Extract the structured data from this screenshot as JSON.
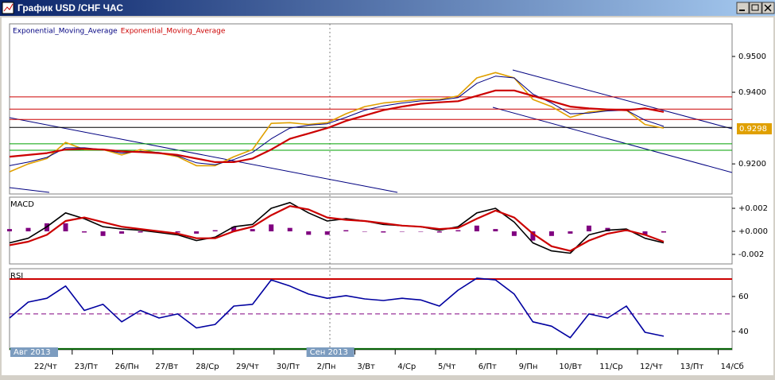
{
  "window": {
    "title": "График USD /CHF ЧАС"
  },
  "price_panel": {
    "type": "line",
    "legend": [
      {
        "name": "Exponential_Moving_Average",
        "color": "#000080"
      },
      {
        "name": "Exponential_Moving_Average",
        "color": "#cc0000"
      }
    ],
    "ylim": [
      0.9116,
      0.9591
    ],
    "yticks": [
      {
        "value": 0.95,
        "label": "0.9500"
      },
      {
        "value": 0.94,
        "label": "0.9400"
      },
      {
        "value": 0.92,
        "label": "0.9200"
      }
    ],
    "last_price": {
      "value": 0.9298,
      "label": "0.9298"
    },
    "levels": [
      {
        "value": 0.9387,
        "color": "#cc0000"
      },
      {
        "value": 0.9353,
        "color": "#cc0000"
      },
      {
        "value": 0.9324,
        "color": "#cc0000"
      },
      {
        "value": 0.9302,
        "color": "#000000"
      },
      {
        "value": 0.9256,
        "color": "#00a000"
      },
      {
        "value": 0.9238,
        "color": "#00a000"
      }
    ],
    "series": [
      {
        "color": "#e0a000",
        "values": [
          0.9178,
          0.92,
          0.9215,
          0.926,
          0.924,
          0.924,
          0.9225,
          0.924,
          0.923,
          0.922,
          0.9195,
          0.9195,
          0.922,
          0.924,
          0.9313,
          0.9315,
          0.931,
          0.9315,
          0.934,
          0.936,
          0.937,
          0.9375,
          0.938,
          0.938,
          0.939,
          0.944,
          0.9455,
          0.944,
          0.938,
          0.936,
          0.933,
          0.9345,
          0.935,
          0.935,
          0.931,
          0.93
        ]
      },
      {
        "color": "#000080",
        "values": [
          0.9195,
          0.9205,
          0.9218,
          0.9245,
          0.9245,
          0.924,
          0.923,
          0.9235,
          0.9232,
          0.9222,
          0.9203,
          0.9198,
          0.9212,
          0.9232,
          0.927,
          0.93,
          0.9308,
          0.9312,
          0.933,
          0.935,
          0.9362,
          0.937,
          0.9376,
          0.9378,
          0.9385,
          0.9425,
          0.9445,
          0.944,
          0.9395,
          0.937,
          0.934,
          0.9342,
          0.9348,
          0.935,
          0.9322,
          0.9305
        ]
      },
      {
        "color": "#cc0000",
        "values": [
          0.922,
          0.9225,
          0.923,
          0.924,
          0.9242,
          0.924,
          0.9235,
          0.9233,
          0.923,
          0.9225,
          0.9215,
          0.9205,
          0.9205,
          0.9215,
          0.924,
          0.927,
          0.9285,
          0.93,
          0.932,
          0.9335,
          0.935,
          0.936,
          0.9368,
          0.9372,
          0.9375,
          0.939,
          0.9405,
          0.9405,
          0.939,
          0.9375,
          0.936,
          0.9355,
          0.9352,
          0.935,
          0.9355,
          0.9345
        ]
      }
    ]
  },
  "macd_panel": {
    "title": "MACD",
    "ylim": [
      -0.00283,
      0.00297
    ],
    "yticks": [
      {
        "value": 0.002,
        "label": "+0.002"
      },
      {
        "value": 0,
        "label": "+0.000"
      },
      {
        "value": -0.002,
        "label": "-0.002"
      }
    ],
    "histogram": {
      "color": "#800080",
      "values": [
        0.0002,
        0.0003,
        0.0007,
        0.0007,
        -0.0001,
        -0.0004,
        -0.0002,
        -0.0001,
        -0.0001,
        -0.0001,
        -0.0002,
        0.0001,
        0.0004,
        0.0002,
        0.0006,
        0.0003,
        -0.0003,
        -0.0003,
        0.0001,
        0,
        -0.0001,
        0,
        0,
        -0.0001,
        0.0001,
        0.0005,
        0.0002,
        -0.0004,
        -0.0008,
        -0.0004,
        -0.0002,
        0.0005,
        0.0003,
        0.0001,
        -0.0003,
        -0.0001
      ]
    },
    "series": [
      {
        "color": "#000000",
        "values": [
          -0.001,
          -0.0006,
          0.0004,
          0.0016,
          0.0011,
          0.0004,
          0.0002,
          0.0001,
          -0.0001,
          -0.0003,
          -0.0008,
          -0.0005,
          0.0004,
          0.0006,
          0.002,
          0.0025,
          0.0016,
          0.0009,
          0.0011,
          0.0009,
          0.0006,
          0.0005,
          0.0004,
          0.0001,
          0.0004,
          0.0016,
          0.002,
          0.0008,
          -0.001,
          -0.0017,
          -0.0019,
          -0.0003,
          0.0001,
          0.0002,
          -0.0006,
          -0.001
        ]
      },
      {
        "color": "#cc0000",
        "values": [
          -0.0012,
          -0.0009,
          -0.0003,
          0.0009,
          0.0012,
          0.0008,
          0.0004,
          0.0002,
          0,
          -0.0002,
          -0.0006,
          -0.0006,
          0,
          0.0004,
          0.0014,
          0.0022,
          0.0019,
          0.0012,
          0.001,
          0.0009,
          0.0007,
          0.0005,
          0.0004,
          0.0002,
          0.0003,
          0.0011,
          0.0018,
          0.0012,
          -0.0002,
          -0.0013,
          -0.0017,
          -0.0008,
          -0.0002,
          0.0001,
          -0.0003,
          -0.0009
        ]
      }
    ]
  },
  "rsi_panel": {
    "title": "RSI",
    "ylim": [
      29.5,
      75.9
    ],
    "yticks": [
      60,
      40
    ],
    "levels": [
      {
        "value": 70,
        "color": "#cc0000"
      },
      {
        "value": 50,
        "color": "#800080"
      },
      {
        "value": 30,
        "color": "#006000"
      }
    ],
    "series": [
      {
        "color": "#0000a0",
        "values": [
          47.7,
          56.8,
          59,
          66,
          52,
          55.5,
          45.5,
          52,
          47.7,
          50,
          42,
          44,
          54.5,
          55.5,
          69.5,
          66,
          61.4,
          59,
          60.5,
          58.6,
          57.7,
          59,
          58,
          54.5,
          63.6,
          70.5,
          69.5,
          61.4,
          45.5,
          43,
          36.4,
          50,
          47.7,
          54.5,
          39.5,
          37.3
        ]
      }
    ]
  },
  "x_axis": {
    "categories": [
      "22/Чт",
      "23/Пт",
      "26/Пн",
      "27/Вт",
      "28/Ср",
      "29/Чт",
      "30/Пт",
      "2/Пн",
      "3/Вт",
      "4/Ср",
      "5/Чт",
      "6/Пт",
      "9/Пн",
      "10/Вт",
      "11/Ср",
      "12/Чт",
      "13/Пт",
      "14/Сб"
    ],
    "months": [
      {
        "label": "Авг 2013",
        "index": 0
      },
      {
        "label": "Сен 2013",
        "index": 7
      }
    ]
  }
}
